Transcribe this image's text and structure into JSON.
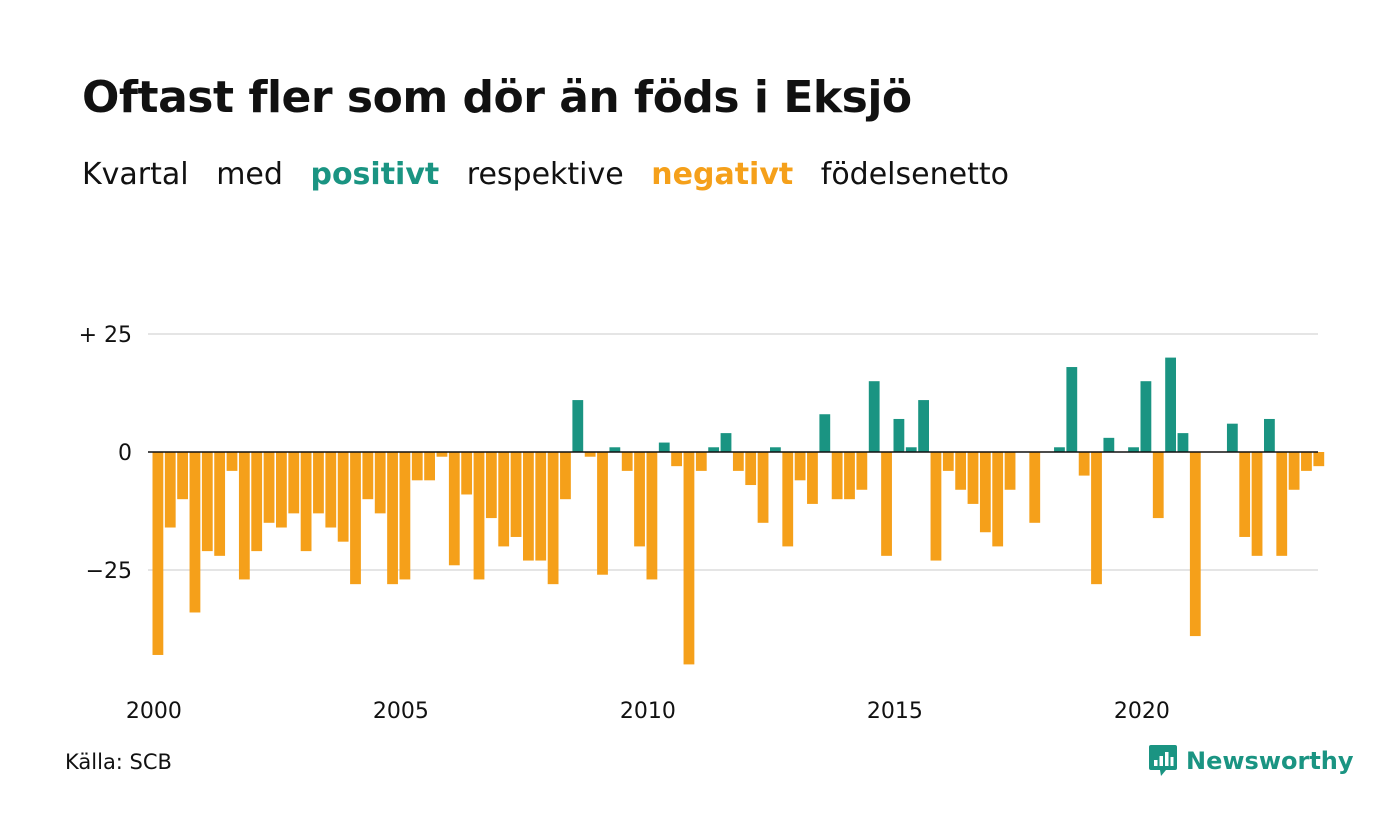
{
  "header": {
    "title": "Oftast fler som dör än föds i Eksjö",
    "subtitle": {
      "w1": "Kvartal",
      "w2": "med",
      "positive": "positivt",
      "w3": "respektive",
      "negative": "negativt",
      "w4": "födelsenetto"
    }
  },
  "colors": {
    "positive": "#1a9482",
    "negative": "#f5a01a",
    "grid": "#e5e5e5",
    "zero_line": "#111111"
  },
  "footer": {
    "source": "Källa: SCB",
    "brand": "Newsworthy",
    "brand_icon": "bar-chart-speech-bubble-icon"
  },
  "chart_data": {
    "type": "bar",
    "x_start": "2000 Q1",
    "ylim": [
      -45,
      35
    ],
    "y_ticks": [
      {
        "value": 25,
        "label": "+ 25"
      },
      {
        "value": 0,
        "label": "0"
      },
      {
        "value": -25,
        "label": "−25"
      }
    ],
    "x_ticks": [
      {
        "year": 2000,
        "label": "2000"
      },
      {
        "year": 2005,
        "label": "2005"
      },
      {
        "year": 2010,
        "label": "2010"
      },
      {
        "year": 2015,
        "label": "2015"
      },
      {
        "year": 2020,
        "label": "2020"
      }
    ],
    "grid": true,
    "legend": "none",
    "values": [
      -43,
      -16,
      -10,
      -34,
      -21,
      -22,
      -4,
      -27,
      -21,
      -15,
      -16,
      -13,
      -21,
      -13,
      -16,
      -19,
      -28,
      -10,
      -13,
      -28,
      -27,
      -6,
      -6,
      -1,
      -24,
      -9,
      -27,
      -14,
      -20,
      -18,
      -23,
      -23,
      -28,
      -10,
      11,
      -1,
      -26,
      1,
      -4,
      -20,
      -27,
      2,
      -3,
      -45,
      -4,
      1,
      4,
      -4,
      -7,
      -15,
      1,
      -20,
      -6,
      -11,
      8,
      -10,
      -10,
      -8,
      15,
      -22,
      7,
      1,
      11,
      -23,
      -4,
      -8,
      -11,
      -17,
      -20,
      -8,
      0,
      -15,
      0,
      1,
      18,
      -5,
      -28,
      3,
      0,
      1,
      15,
      -14,
      20,
      4,
      -39,
      0,
      0,
      6,
      -18,
      -22,
      7,
      -22,
      -8,
      -4,
      -3
    ]
  }
}
